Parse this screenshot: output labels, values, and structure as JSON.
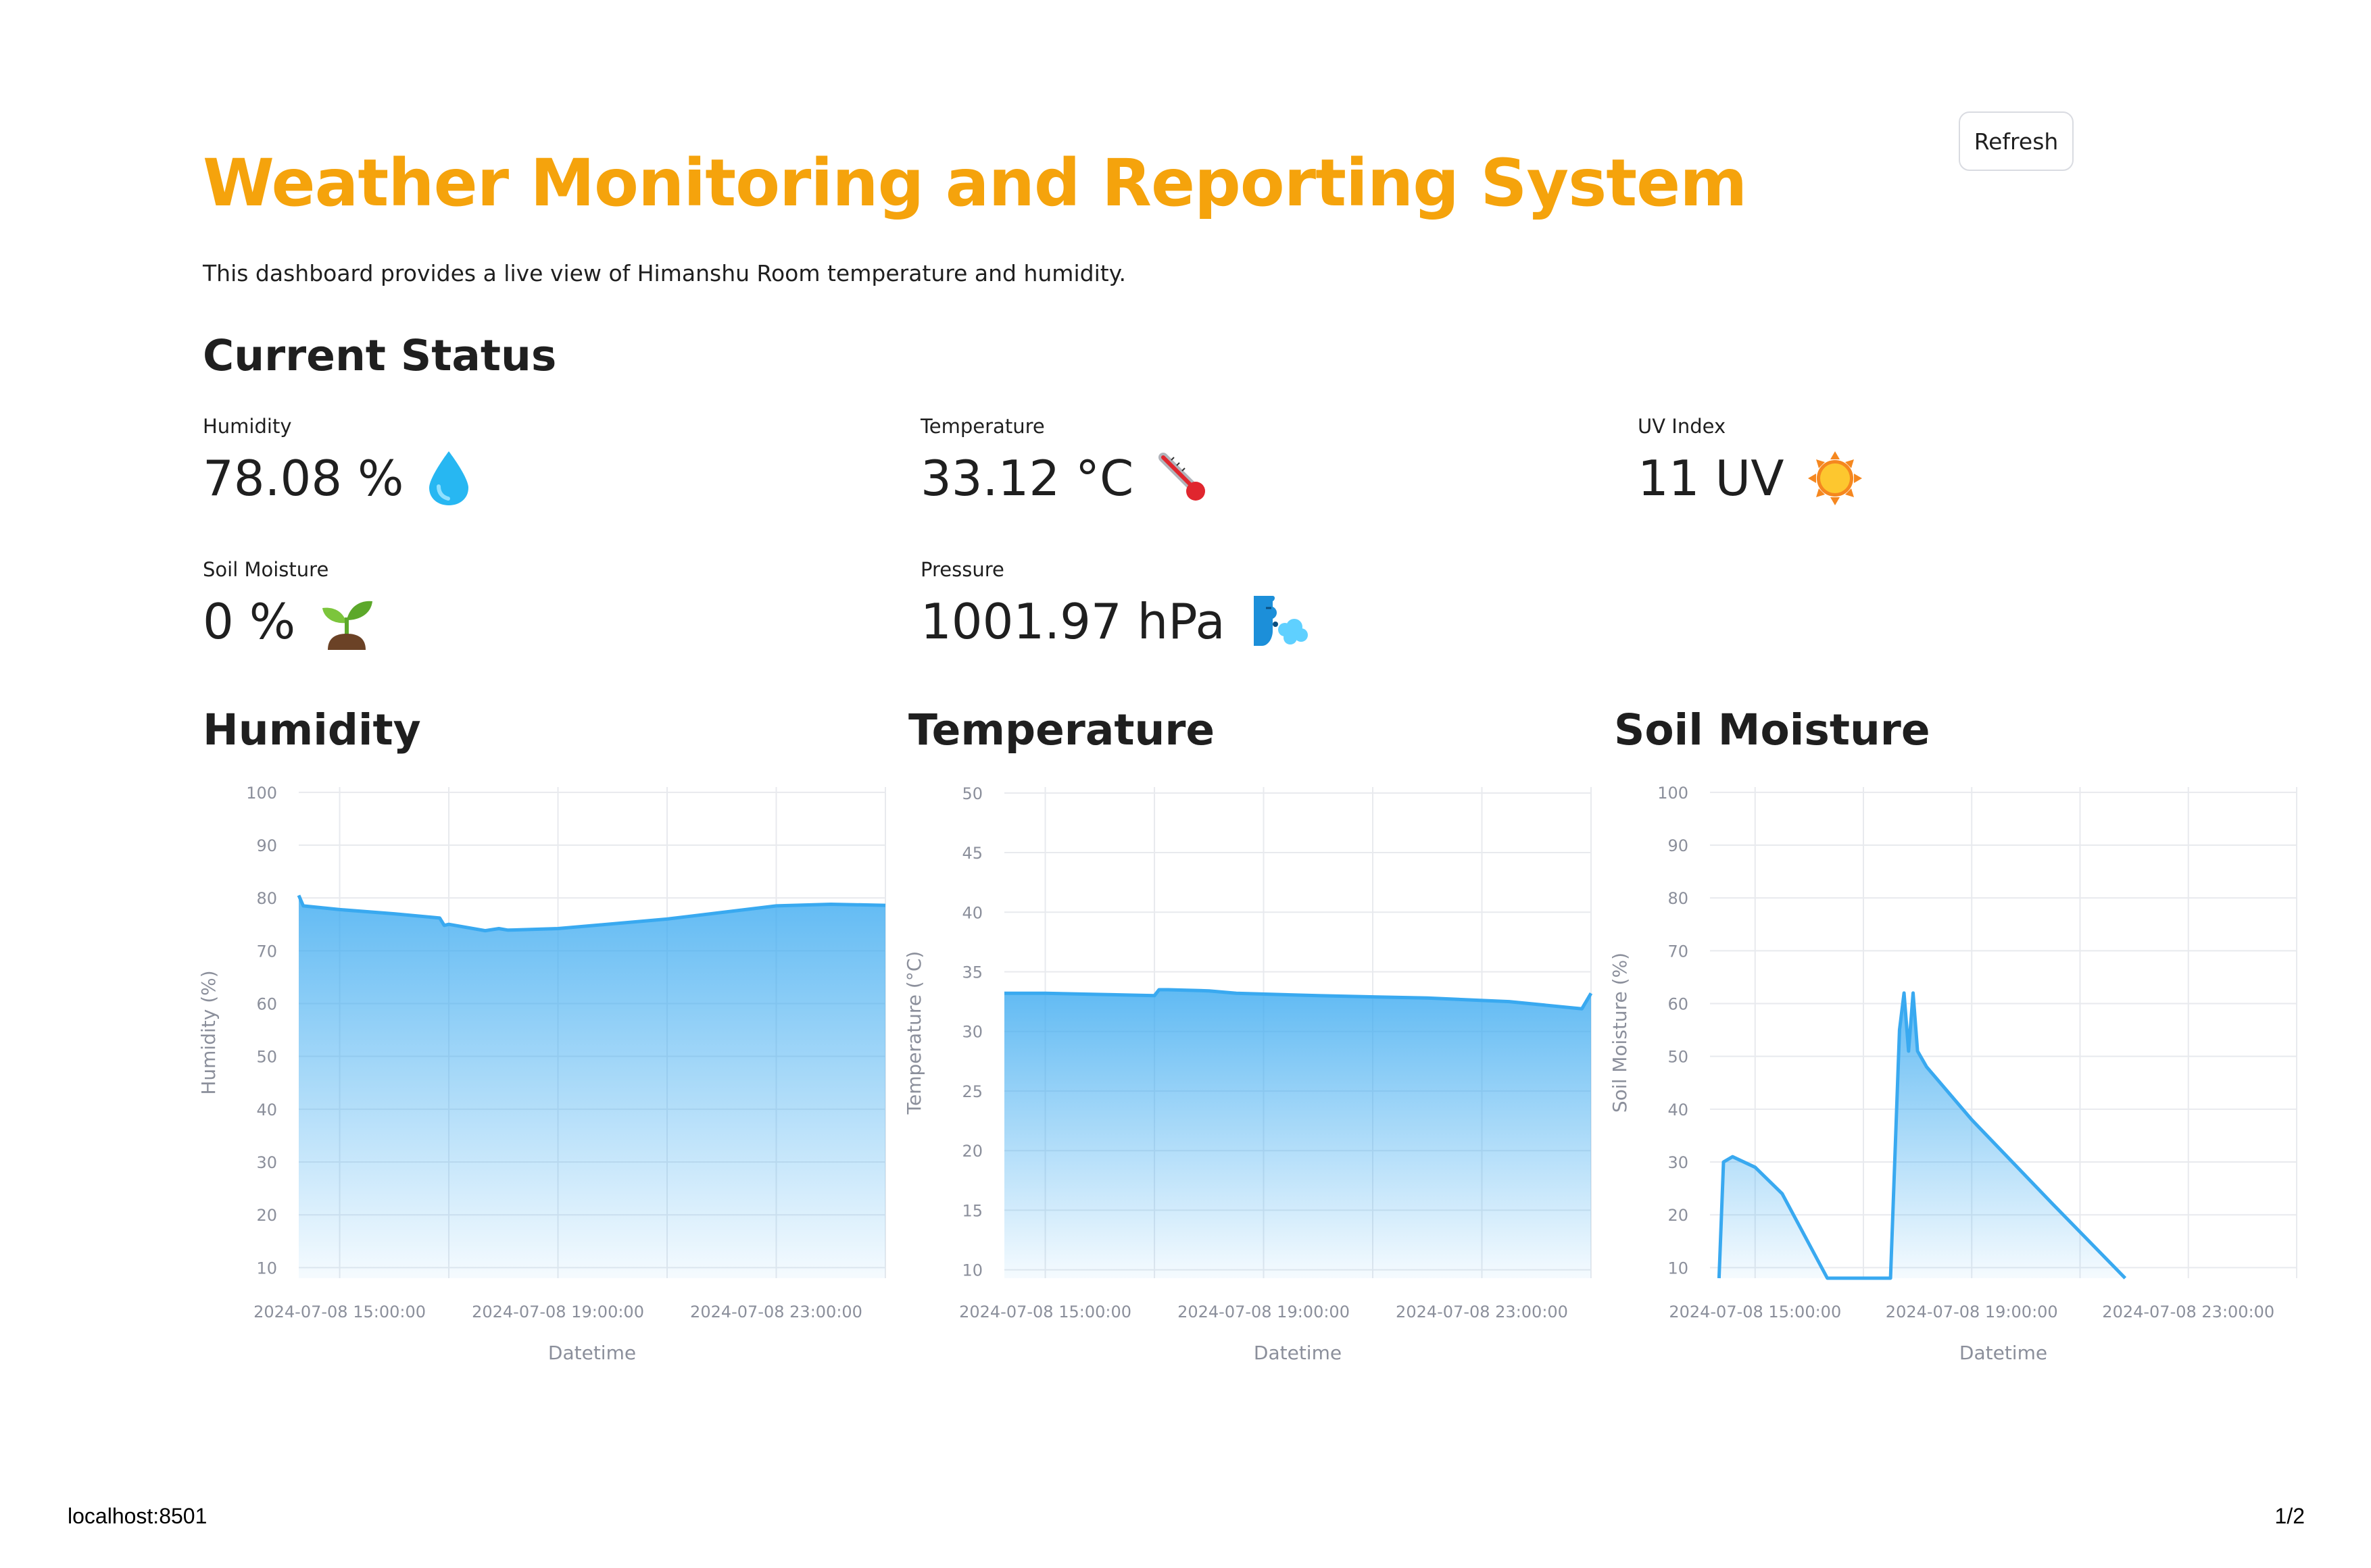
{
  "header": {
    "refresh_label": "Refresh",
    "title": "Weather Monitoring and Reporting System",
    "intro": "This dashboard provides a live view of Himanshu Room temperature and humidity."
  },
  "current_status": {
    "heading": "Current Status",
    "metrics": [
      {
        "label": "Humidity",
        "value": "78.08 %",
        "icon": "water-drop-icon"
      },
      {
        "label": "Temperature",
        "value": "33.12 °C",
        "icon": "thermometer-icon"
      },
      {
        "label": "UV Index",
        "value": "11 UV",
        "icon": "sun-icon"
      },
      {
        "label": "Soil Moisture",
        "value": "0 %",
        "icon": "seedling-icon"
      },
      {
        "label": "Pressure",
        "value": "1001.97 hPa",
        "icon": "wind-face-icon"
      }
    ]
  },
  "colors": {
    "title": "#f5a30c",
    "series": "#39a9f0",
    "grid": "#e8eaee",
    "axis_text": "#8b8f9b"
  },
  "footer": {
    "left": "localhost:8501",
    "right": "1/2"
  },
  "chart_data": [
    {
      "type": "area",
      "heading": "Humidity",
      "xlabel": "Datetime",
      "ylabel": "Humidity (%)",
      "ylim": [
        8,
        101
      ],
      "yticks": [
        100,
        90,
        80,
        70,
        60,
        50,
        40,
        30,
        20,
        10
      ],
      "xlim": [
        "2024-07-08 14:15",
        "2024-07-09 01:00"
      ],
      "xticks": [
        "2024-07-08 15:00:00",
        "2024-07-08 19:00:00",
        "2024-07-08 23:00:00"
      ],
      "grid": true,
      "x": [
        "2024-07-08 14:15",
        "2024-07-08 14:20",
        "2024-07-08 15:00",
        "2024-07-08 16:00",
        "2024-07-08 16:50",
        "2024-07-08 16:55",
        "2024-07-08 17:00",
        "2024-07-08 17:40",
        "2024-07-08 17:55",
        "2024-07-08 18:05",
        "2024-07-08 19:00",
        "2024-07-08 21:00",
        "2024-07-08 23:00",
        "2024-07-09 00:00",
        "2024-07-09 01:00"
      ],
      "y": [
        80.5,
        78.5,
        77.8,
        77.0,
        76.2,
        74.8,
        75.0,
        73.8,
        74.2,
        73.9,
        74.2,
        76.0,
        78.5,
        78.8,
        78.6
      ]
    },
    {
      "type": "area",
      "heading": "Temperature",
      "xlabel": "Datetime",
      "ylabel": "Temperature (°C)",
      "ylim": [
        9.3,
        50.5
      ],
      "yticks": [
        50,
        45,
        40,
        35,
        30,
        25,
        20,
        15,
        10
      ],
      "xlim": [
        "2024-07-08 14:15",
        "2024-07-09 01:00"
      ],
      "xticks": [
        "2024-07-08 15:00:00",
        "2024-07-08 19:00:00",
        "2024-07-08 23:00:00"
      ],
      "grid": true,
      "x": [
        "2024-07-08 14:15",
        "2024-07-08 15:00",
        "2024-07-08 16:00",
        "2024-07-08 17:00",
        "2024-07-08 17:05",
        "2024-07-08 17:15",
        "2024-07-08 18:00",
        "2024-07-08 18:30",
        "2024-07-08 20:00",
        "2024-07-08 22:00",
        "2024-07-08 23:30",
        "2024-07-09 00:50",
        "2024-07-09 01:00"
      ],
      "y": [
        33.2,
        33.2,
        33.1,
        33.0,
        33.5,
        33.5,
        33.4,
        33.2,
        33.0,
        32.8,
        32.5,
        31.9,
        33.2
      ]
    },
    {
      "type": "area",
      "heading": "Soil Moisture",
      "xlabel": "Datetime",
      "ylabel": "Soil Moisture (%)",
      "ylim": [
        8,
        101
      ],
      "yticks": [
        100,
        90,
        80,
        70,
        60,
        50,
        40,
        30,
        20,
        10
      ],
      "xlim": [
        "2024-07-08 14:10",
        "2024-07-09 01:00"
      ],
      "xticks": [
        "2024-07-08 15:00:00",
        "2024-07-08 19:00:00",
        "2024-07-08 23:00:00"
      ],
      "grid": true,
      "x": [
        "2024-07-08 14:20",
        "2024-07-08 14:25",
        "2024-07-08 14:35",
        "2024-07-08 15:00",
        "2024-07-08 15:30",
        "2024-07-08 16:20",
        "2024-07-08 17:30",
        "2024-07-08 17:40",
        "2024-07-08 17:45",
        "2024-07-08 17:50",
        "2024-07-08 17:55",
        "2024-07-08 18:00",
        "2024-07-08 18:10",
        "2024-07-08 19:00",
        "2024-07-08 20:30",
        "2024-07-08 21:50"
      ],
      "y": [
        8,
        30,
        31,
        29,
        24,
        8,
        8,
        55,
        62,
        51,
        62,
        51,
        48,
        38,
        22,
        8
      ]
    }
  ]
}
